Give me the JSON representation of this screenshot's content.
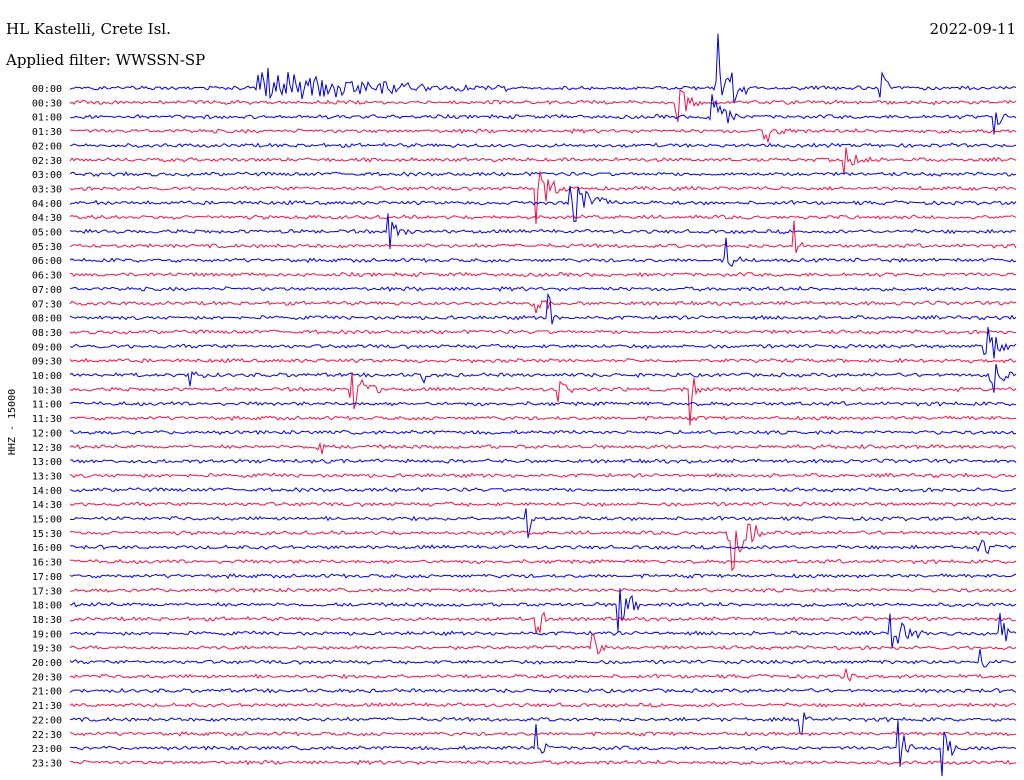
{
  "header": {
    "station": "HL Kastelli, Crete Isl.",
    "filter": "Applied filter: WWSSN-SP",
    "date": "2022-09-11"
  },
  "chart_data": {
    "type": "line",
    "title": "",
    "ylabel": "HHZ - 15000",
    "xlabel": "",
    "colors": {
      "even": "#0000dd",
      "odd": "#ee1144"
    },
    "row_labels": [
      "00:00",
      "00:30",
      "01:00",
      "01:30",
      "02:00",
      "02:30",
      "03:00",
      "03:30",
      "04:00",
      "04:30",
      "05:00",
      "05:30",
      "06:00",
      "06:30",
      "07:00",
      "07:30",
      "08:00",
      "08:30",
      "09:00",
      "09:30",
      "10:00",
      "10:30",
      "11:00",
      "11:30",
      "12:00",
      "12:30",
      "13:00",
      "13:30",
      "14:00",
      "14:30",
      "15:00",
      "15:30",
      "16:00",
      "16:30",
      "17:00",
      "17:30",
      "18:00",
      "18:30",
      "19:00",
      "19:30",
      "20:00",
      "20:30",
      "21:00",
      "21:30",
      "22:00",
      "22:30",
      "23:00",
      "23:30"
    ],
    "events": [
      {
        "row": 0,
        "minute": 6.0,
        "amp": 0.9,
        "dur": 8
      },
      {
        "row": 0,
        "minute": 20.5,
        "amp": 3.0,
        "dur": 1
      },
      {
        "row": 0,
        "minute": 25.7,
        "amp": 0.9,
        "dur": 0.5
      },
      {
        "row": 1,
        "minute": 19.2,
        "amp": 1.0,
        "dur": 1
      },
      {
        "row": 2,
        "minute": 20.3,
        "amp": 1.2,
        "dur": 1
      },
      {
        "row": 2,
        "minute": 29.3,
        "amp": 1.0,
        "dur": 0.5
      },
      {
        "row": 3,
        "minute": 22.0,
        "amp": 0.6,
        "dur": 1
      },
      {
        "row": 5,
        "minute": 24.5,
        "amp": 1.2,
        "dur": 1
      },
      {
        "row": 7,
        "minute": 14.8,
        "amp": 1.4,
        "dur": 1
      },
      {
        "row": 8,
        "minute": 15.9,
        "amp": 1.2,
        "dur": 1.5
      },
      {
        "row": 10,
        "minute": 10.1,
        "amp": 1.0,
        "dur": 0.8
      },
      {
        "row": 11,
        "minute": 23.0,
        "amp": 1.0,
        "dur": 0.5
      },
      {
        "row": 12,
        "minute": 20.8,
        "amp": 1.0,
        "dur": 0.8
      },
      {
        "row": 15,
        "minute": 14.7,
        "amp": 0.6,
        "dur": 1
      },
      {
        "row": 16,
        "minute": 15.2,
        "amp": 1.0,
        "dur": 0.3
      },
      {
        "row": 18,
        "minute": 29.0,
        "amp": 1.5,
        "dur": 1
      },
      {
        "row": 20,
        "minute": 3.8,
        "amp": 0.7,
        "dur": 0.5
      },
      {
        "row": 20,
        "minute": 11.1,
        "amp": 0.7,
        "dur": 0.5
      },
      {
        "row": 20,
        "minute": 29.2,
        "amp": 1.0,
        "dur": 0.8
      },
      {
        "row": 21,
        "minute": 8.9,
        "amp": 1.3,
        "dur": 1
      },
      {
        "row": 21,
        "minute": 15.5,
        "amp": 0.6,
        "dur": 0.5
      },
      {
        "row": 21,
        "minute": 19.7,
        "amp": 1.0,
        "dur": 0.3
      },
      {
        "row": 25,
        "minute": 7.9,
        "amp": 1.0,
        "dur": 0.3
      },
      {
        "row": 30,
        "minute": 14.5,
        "amp": 1.0,
        "dur": 0.3
      },
      {
        "row": 31,
        "minute": 20.9,
        "amp": 3.0,
        "dur": 1
      },
      {
        "row": 32,
        "minute": 28.8,
        "amp": 0.6,
        "dur": 0.8
      },
      {
        "row": 36,
        "minute": 17.4,
        "amp": 1.5,
        "dur": 0.8
      },
      {
        "row": 37,
        "minute": 14.8,
        "amp": 1.0,
        "dur": 0.5
      },
      {
        "row": 38,
        "minute": 26.0,
        "amp": 0.8,
        "dur": 1.5
      },
      {
        "row": 38,
        "minute": 29.5,
        "amp": 1.0,
        "dur": 0.5
      },
      {
        "row": 39,
        "minute": 16.6,
        "amp": 1.0,
        "dur": 0.5
      },
      {
        "row": 40,
        "minute": 28.8,
        "amp": 0.8,
        "dur": 0.5
      },
      {
        "row": 41,
        "minute": 24.6,
        "amp": 0.8,
        "dur": 0.3
      },
      {
        "row": 44,
        "minute": 23.2,
        "amp": 0.6,
        "dur": 0.5
      },
      {
        "row": 46,
        "minute": 14.8,
        "amp": 1.0,
        "dur": 0.5
      },
      {
        "row": 46,
        "minute": 26.3,
        "amp": 1.2,
        "dur": 0.5
      },
      {
        "row": 46,
        "minute": 27.7,
        "amp": 1.0,
        "dur": 0.5
      }
    ]
  }
}
